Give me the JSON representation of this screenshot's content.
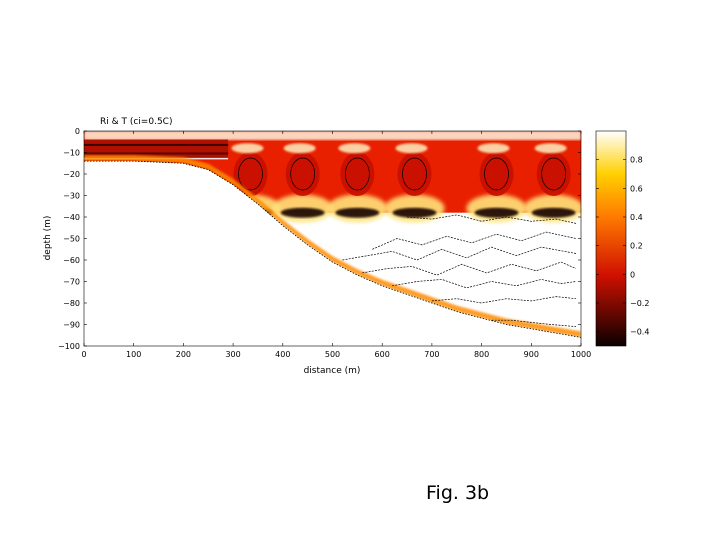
{
  "chart_data": {
    "type": "heatmap",
    "title": "Ri & T (ci=0.5C)",
    "xlabel": "distance (m)",
    "ylabel": "depth (m)",
    "xlim": [
      0,
      1000
    ],
    "ylim": [
      -100,
      0
    ],
    "x_ticks": [
      0,
      100,
      200,
      300,
      400,
      500,
      600,
      700,
      800,
      900,
      1000
    ],
    "y_ticks": [
      0,
      -10,
      -20,
      -30,
      -40,
      -50,
      -60,
      -70,
      -80,
      -90,
      -100
    ],
    "y_tick_labels": [
      "0",
      "−10",
      "−20",
      "−30",
      "−40",
      "−50",
      "−60",
      "−70",
      "−80",
      "−90",
      "−100"
    ],
    "colorbar": {
      "colormap": "hot",
      "range": [
        -0.5,
        1.0
      ],
      "ticks": [
        0.8,
        0.6,
        0.4,
        0.2,
        0,
        -0.2,
        -0.4
      ],
      "tick_labels": [
        "0.8",
        "0.6",
        "0.4",
        "0.2",
        "0",
        "−0.2",
        "−0.4"
      ]
    },
    "bottom_profile": {
      "x": [
        0,
        100,
        200,
        250,
        300,
        350,
        400,
        450,
        500,
        550,
        600,
        650,
        700,
        750,
        800,
        850,
        900,
        950,
        1000
      ],
      "depth": [
        -14,
        -14,
        -15,
        -18,
        -25,
        -34,
        -44,
        -53,
        -61,
        -67,
        -72,
        -76,
        -80,
        -84,
        -87,
        -90,
        -92,
        -94,
        -96
      ]
    },
    "mixed_layer_depth": -38,
    "eddy_centers_x": [
      335,
      440,
      550,
      665,
      830,
      945
    ],
    "isotherms": [
      {
        "x": [
          650,
          700,
          750,
          800,
          850,
          900,
          950,
          990
        ],
        "depth": [
          -40,
          -41,
          -39,
          -42,
          -40,
          -42,
          -41,
          -43
        ]
      },
      {
        "x": [
          580,
          630,
          680,
          730,
          780,
          830,
          880,
          930,
          990
        ],
        "depth": [
          -55,
          -50,
          -53,
          -49,
          -52,
          -48,
          -51,
          -47,
          -50
        ]
      },
      {
        "x": [
          520,
          570,
          620,
          670,
          720,
          770,
          820,
          870,
          920,
          990
        ],
        "depth": [
          -60,
          -58,
          -56,
          -60,
          -55,
          -59,
          -54,
          -58,
          -54,
          -57
        ]
      },
      {
        "x": [
          560,
          610,
          660,
          710,
          760,
          810,
          860,
          910,
          960,
          990
        ],
        "depth": [
          -66,
          -64,
          -63,
          -67,
          -62,
          -66,
          -62,
          -65,
          -61,
          -64
        ]
      },
      {
        "x": [
          620,
          670,
          720,
          770,
          820,
          870,
          920,
          960,
          990
        ],
        "depth": [
          -72,
          -70,
          -69,
          -73,
          -70,
          -72,
          -69,
          -71,
          -70
        ]
      },
      {
        "x": [
          700,
          750,
          800,
          850,
          900,
          950,
          990
        ],
        "depth": [
          -79,
          -78,
          -80,
          -78,
          -79,
          -77,
          -78
        ]
      },
      {
        "x": [
          820,
          860,
          900,
          940,
          990
        ],
        "depth": [
          -88,
          -88,
          -89,
          -90,
          -91
        ]
      }
    ]
  },
  "caption": "Fig. 3b"
}
